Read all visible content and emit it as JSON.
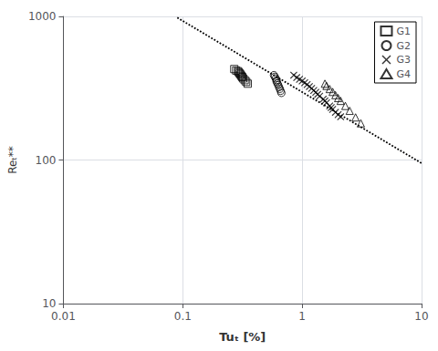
{
  "chart_data": {
    "type": "scatter",
    "xlabel": "Tuₜ [%]",
    "ylabel": "Reₜ**",
    "log": true,
    "xlim": [
      0.01,
      10
    ],
    "ylim": [
      10,
      1000
    ],
    "xticks": [
      0.01,
      0.1,
      1,
      10
    ],
    "yticks": [
      10,
      100,
      1000
    ],
    "grid": true,
    "legend": "upper right",
    "series": [
      {
        "type": "line",
        "line_style": "dotted",
        "color": "#000000",
        "x": [
          0.09,
          10
        ],
        "values": [
          980,
          95
        ]
      },
      {
        "name": "G1",
        "type": "scatter",
        "marker": "square",
        "color": "#000000",
        "x": [
          0.27,
          0.28,
          0.29,
          0.295,
          0.3,
          0.305,
          0.31,
          0.315,
          0.32,
          0.33,
          0.34,
          0.35
        ],
        "values": [
          430,
          420,
          415,
          408,
          400,
          393,
          385,
          378,
          370,
          360,
          350,
          340
        ]
      },
      {
        "name": "G2",
        "type": "scatter",
        "marker": "circle",
        "color": "#000000",
        "x": [
          0.58,
          0.59,
          0.6,
          0.61,
          0.61,
          0.62,
          0.63,
          0.64,
          0.65,
          0.66,
          0.67
        ],
        "values": [
          390,
          380,
          370,
          360,
          352,
          342,
          333,
          322,
          313,
          303,
          293
        ]
      },
      {
        "name": "G3",
        "type": "scatter",
        "marker": "x",
        "color": "#000000",
        "x": [
          0.85,
          0.9,
          0.95,
          1.0,
          1.05,
          1.1,
          1.15,
          1.2,
          1.25,
          1.3,
          1.35,
          1.4,
          1.5,
          1.55,
          1.6,
          1.7,
          1.75,
          1.8,
          1.9,
          2.0,
          2.1
        ],
        "values": [
          390,
          375,
          365,
          355,
          345,
          335,
          325,
          315,
          305,
          296,
          287,
          278,
          265,
          258,
          250,
          238,
          232,
          225,
          215,
          207,
          200
        ]
      },
      {
        "name": "G4",
        "type": "scatter",
        "marker": "triangle",
        "color": "#000000",
        "x": [
          1.55,
          1.6,
          1.7,
          1.8,
          1.9,
          2.0,
          2.1,
          2.3,
          2.5,
          2.8,
          3.1
        ],
        "values": [
          340,
          328,
          312,
          298,
          283,
          270,
          258,
          238,
          220,
          198,
          180
        ]
      }
    ]
  }
}
